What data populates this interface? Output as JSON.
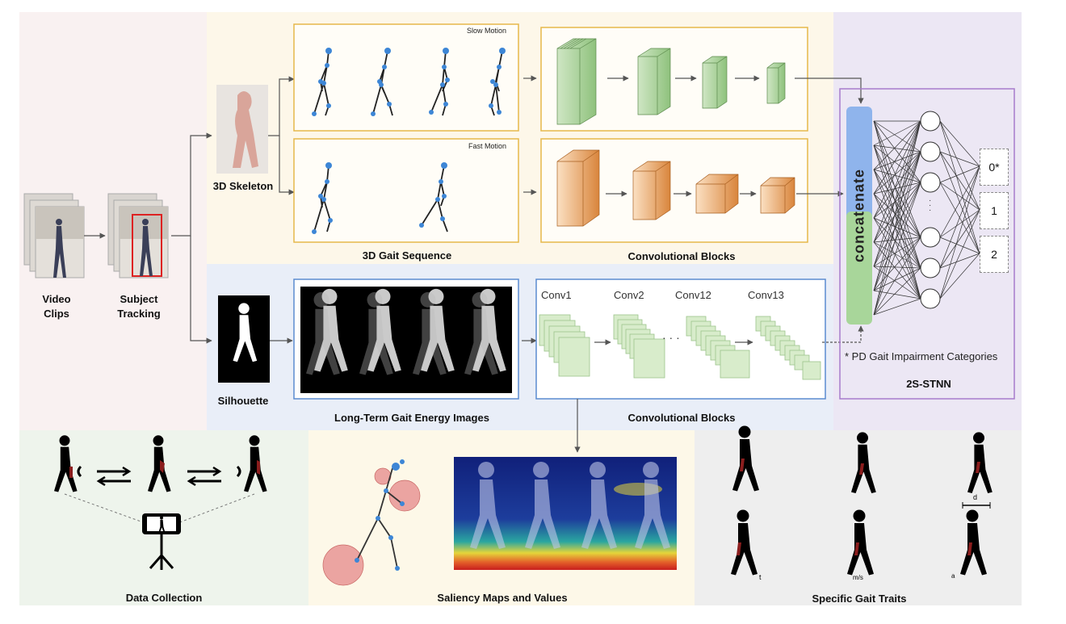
{
  "labels": {
    "video_clips": "Video\nClips",
    "subject_tracking": "Subject\nTracking",
    "skeleton": "3D Skeleton",
    "silhouette": "Silhouette",
    "slow_motion": "Slow Motion",
    "fast_motion": "Fast Motion",
    "gait_sequence": "3D Gait Sequence",
    "conv_blocks_top": "Convolutional Blocks",
    "conv_blocks_bottom": "Convolutional Blocks",
    "gait_energy": "Long-Term Gait Energy Images",
    "concatenate": "concatenate",
    "footnote": "* PD Gait Impairment Categories",
    "network": "2S-STNN",
    "data_collection": "Data Collection",
    "saliency": "Saliency Maps and Values",
    "gait_traits": "Specific Gait Traits",
    "dots": "· · ·",
    "vdots": "·\n·\n·"
  },
  "conv_names": [
    "Conv1",
    "Conv2",
    "Conv12",
    "Conv13"
  ],
  "categories": [
    "0*",
    "1",
    "2"
  ],
  "trait_marks": [
    "d",
    "t",
    "m/s",
    "a"
  ],
  "colors": {
    "panel_pink": "#f9f1f1",
    "panel_yellow": "#fdf7e9",
    "panel_blue": "#e9eef8",
    "panel_purple": "#ece7f4",
    "panel_green": "#eef4ec",
    "panel_grey": "#eeeeee",
    "orange_border": "#e6b84a",
    "blue_border": "#5b8bd0",
    "purple_border": "#a77bcc",
    "green_block": "#9fc98f",
    "orange_block": "#e29a4f",
    "concat_blue": "#8fb4ec",
    "concat_green": "#a8d69a"
  }
}
